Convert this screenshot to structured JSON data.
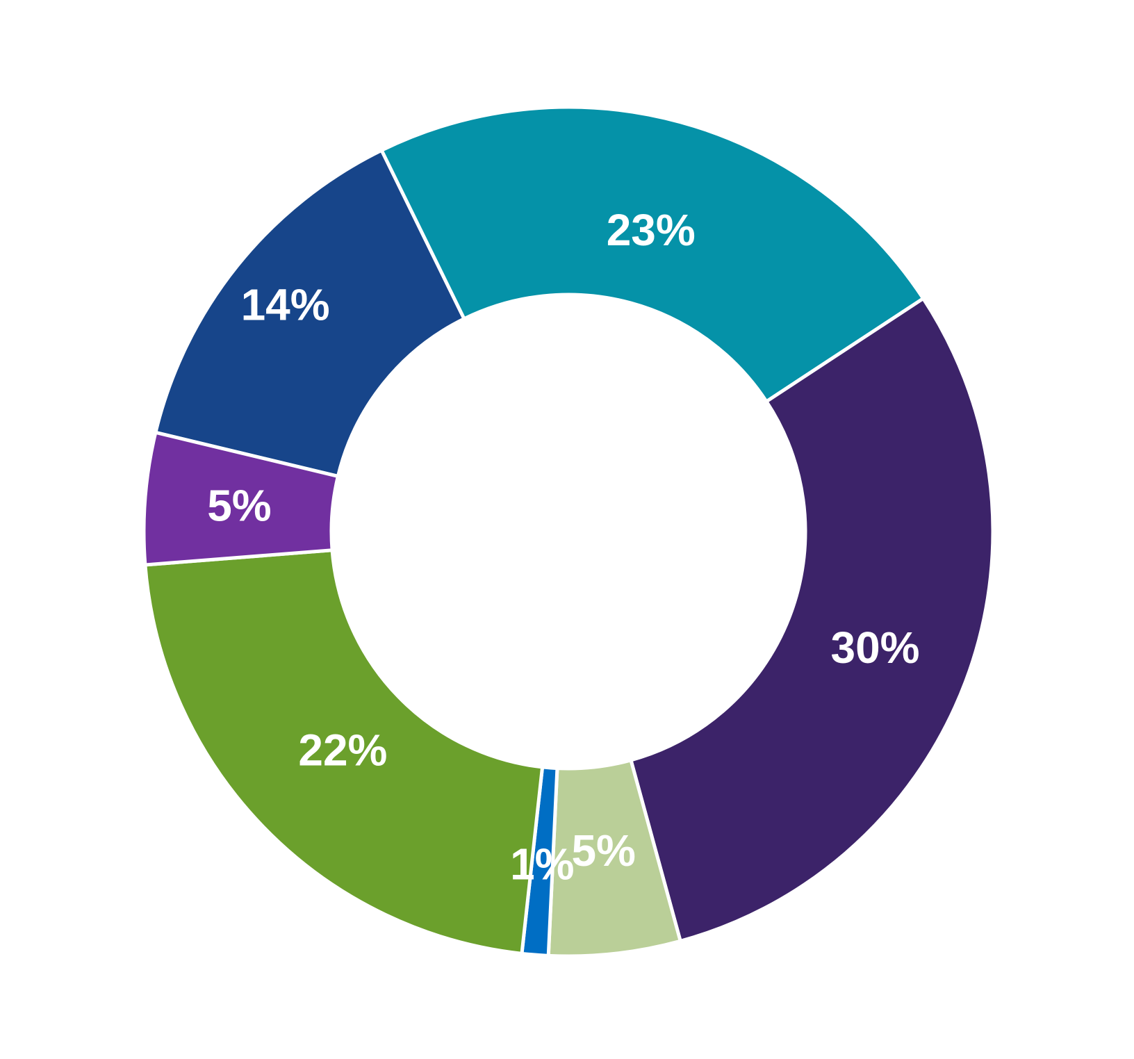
{
  "chart_data": {
    "type": "pie",
    "style": "donut",
    "slices": [
      {
        "value": 14,
        "label": "14%",
        "color": "#17458A"
      },
      {
        "value": 23,
        "label": "23%",
        "color": "#0592A8"
      },
      {
        "value": 30,
        "label": "30%",
        "color": "#3C2369"
      },
      {
        "value": 5,
        "label": "5%",
        "color": "#BACF98"
      },
      {
        "value": 1,
        "label": "1%",
        "color": "#006EC4"
      },
      {
        "value": 22,
        "label": "22%",
        "color": "#6BA02C"
      },
      {
        "value": 5,
        "label": "5%",
        "color": "#7130A0"
      }
    ],
    "separator_color": "#FFFFFF",
    "background": "#FFFFFF"
  }
}
